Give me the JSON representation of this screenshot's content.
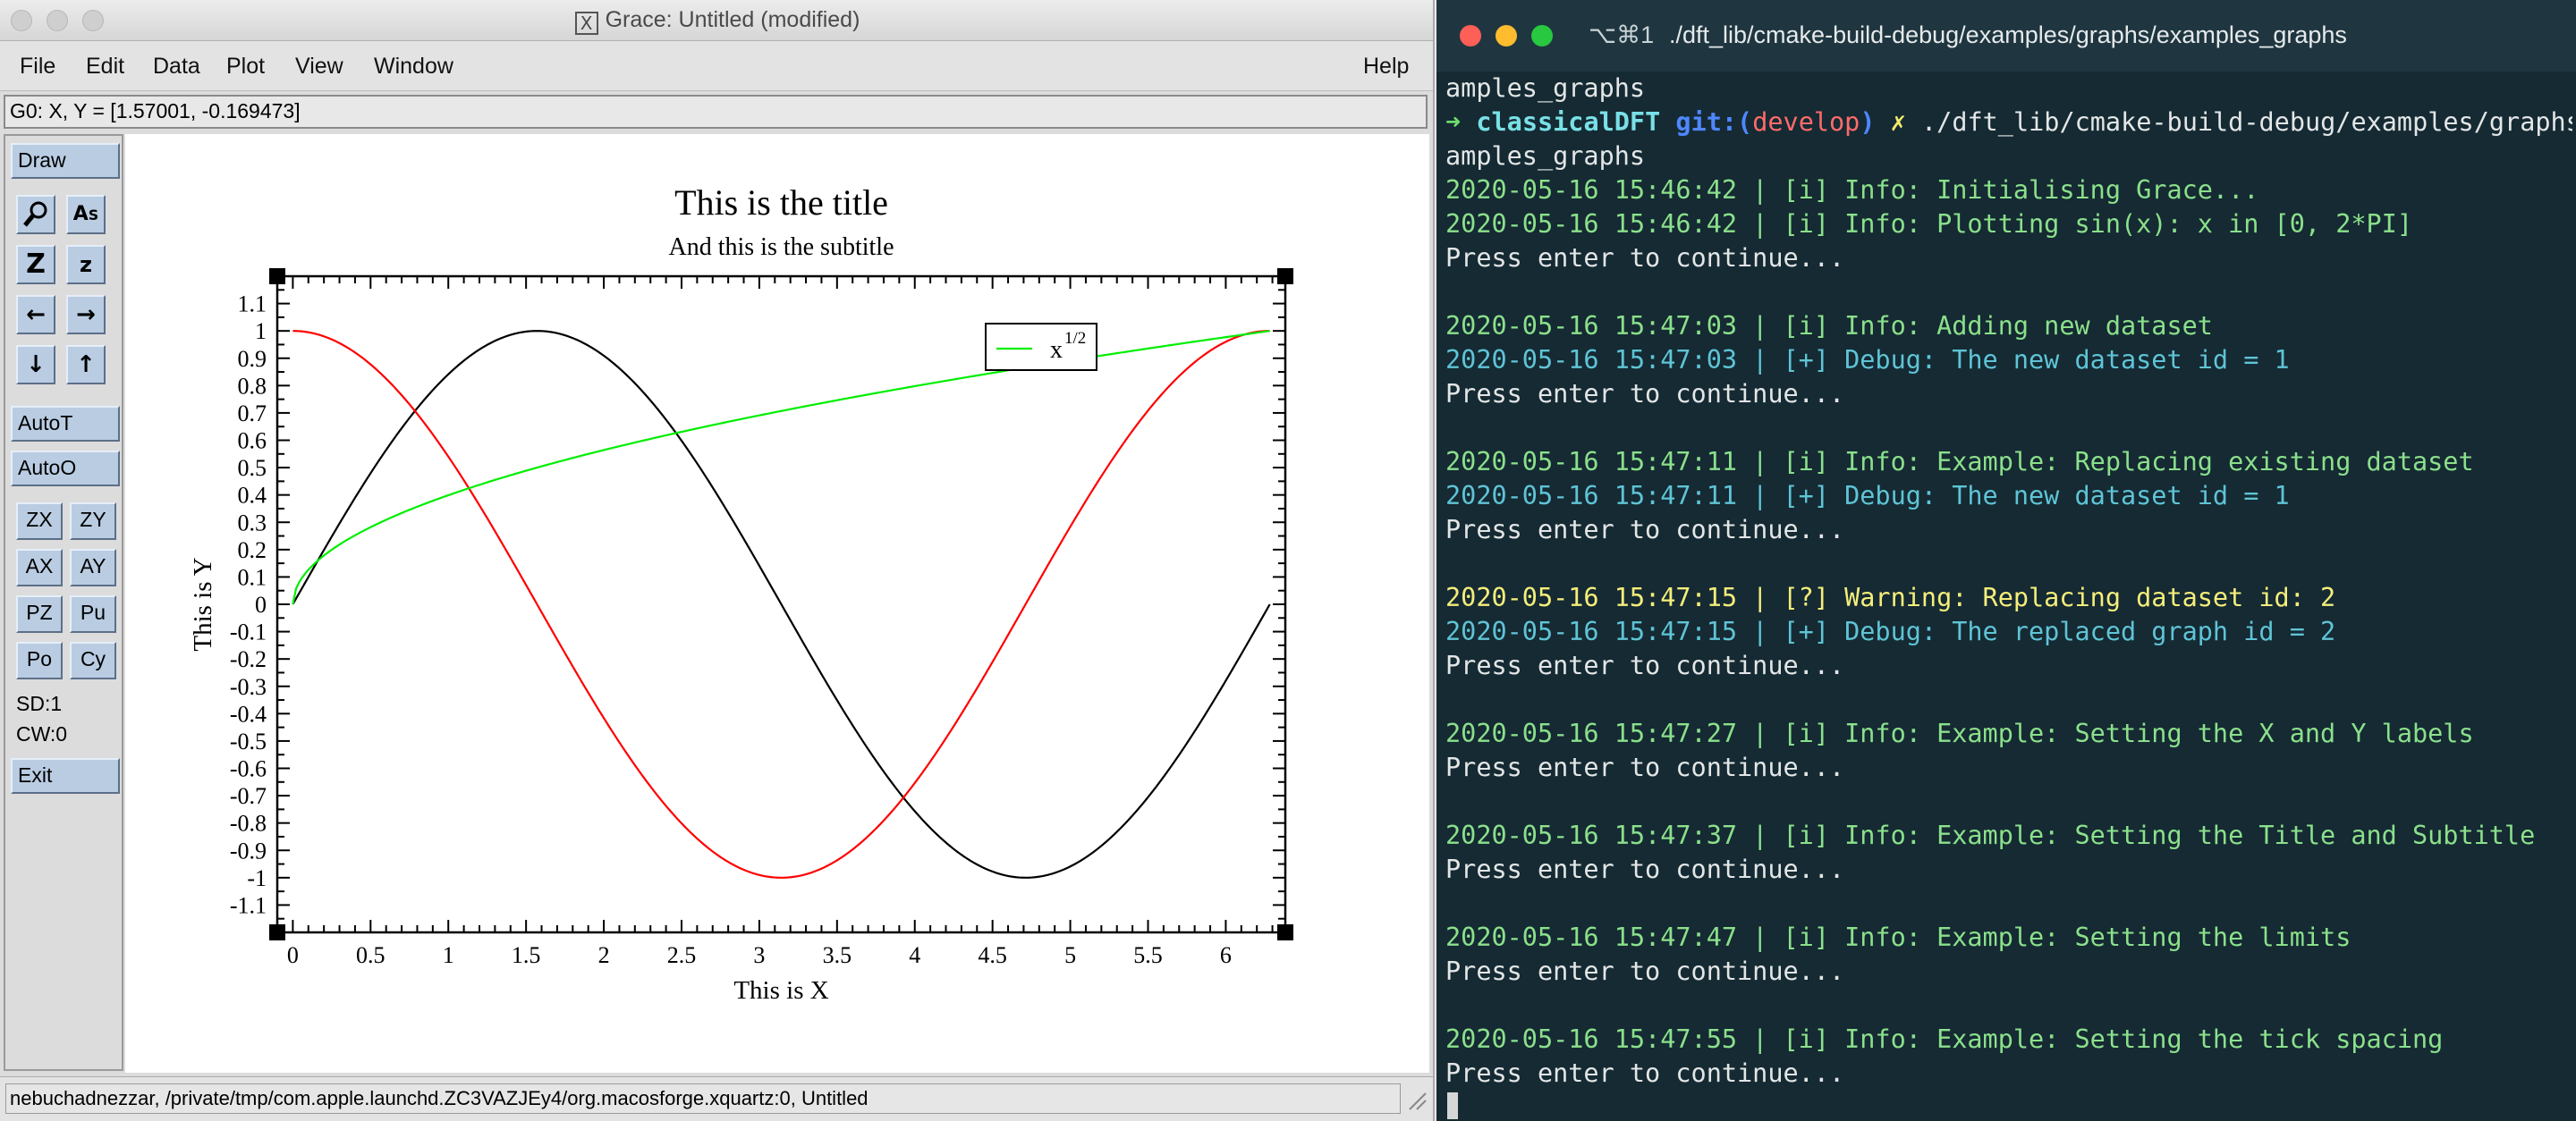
{
  "grace": {
    "title": "Grace: Untitled (modified)",
    "menu": {
      "file": "File",
      "edit": "Edit",
      "data": "Data",
      "plot": "Plot",
      "view": "View",
      "window": "Window",
      "help": "Help"
    },
    "locator": "G0: X, Y = [1.57001, -0.169473]",
    "toolbar": {
      "draw": "Draw",
      "autot": "AutoT",
      "autoo": "AutoO",
      "zx": "ZX",
      "zy": "ZY",
      "ax": "AX",
      "ay": "AY",
      "pz": "PZ",
      "pu": "Pu",
      "po": "Po",
      "cy": "Cy",
      "sd": "SD:1",
      "cw": "CW:0",
      "exit": "Exit",
      "icons": [
        "magnifier-icon",
        "text-tool-icon",
        "zoom-z-icon",
        "zoom-small-z-icon",
        "arrow-left-icon",
        "arrow-right-icon",
        "arrow-down-icon",
        "arrow-up-icon"
      ]
    },
    "status": "nebuchadnezzar, /private/tmp/com.apple.launchd.ZC3VAZJEy4/org.macosforge.xquartz:0, Untitled"
  },
  "chart_data": {
    "type": "line",
    "title": "This is the title",
    "subtitle": "And this is the subtitle",
    "xlabel": "This is X",
    "ylabel": "This is Y",
    "xlim": [
      -0.1,
      6.383
    ],
    "ylim": [
      -1.2,
      1.2
    ],
    "x_ticks": [
      "0",
      "0.5",
      "1",
      "1.5",
      "2",
      "2.5",
      "3",
      "3.5",
      "4",
      "4.5",
      "5",
      "5.5",
      "6"
    ],
    "y_ticks": [
      "1.1",
      "1",
      "0.9",
      "0.8",
      "0.7",
      "0.6",
      "0.5",
      "0.4",
      "0.3",
      "0.2",
      "0.1",
      "0",
      "-0.1",
      "-0.2",
      "-0.3",
      "-0.4",
      "-0.5",
      "-0.6",
      "-0.7",
      "-0.8",
      "-0.9",
      "-1",
      "-1.1"
    ],
    "legend": {
      "placement": "top-right",
      "label_base": "x",
      "label_sup": "1/2"
    },
    "series": [
      {
        "function": "sin(x)",
        "color": "#000000",
        "x": [
          0,
          0.5,
          1,
          1.5708,
          2,
          2.5,
          3,
          3.5,
          4,
          4.5,
          4.7124,
          5,
          5.5,
          6,
          6.2832
        ],
        "values": [
          0,
          0.479,
          0.841,
          1,
          0.909,
          0.598,
          0.141,
          -0.351,
          -0.757,
          -0.978,
          -1,
          -0.959,
          -0.706,
          -0.279,
          0
        ]
      },
      {
        "function": "cos(x)",
        "color": "#ff0000",
        "x": [
          0,
          0.5,
          1,
          1.5708,
          2,
          2.5,
          3,
          3.1416,
          3.5,
          4,
          4.5,
          5,
          5.5,
          6,
          6.2832
        ],
        "values": [
          1,
          0.878,
          0.54,
          0,
          -0.416,
          -0.801,
          -0.99,
          -1,
          -0.936,
          -0.654,
          -0.211,
          0.284,
          0.709,
          0.96,
          1
        ]
      },
      {
        "function": "x^(1/2) (scaled)",
        "name": "x1/2",
        "color": "#00ee00",
        "x": [
          0,
          0.25,
          0.5,
          1,
          1.5,
          2,
          2.5,
          3,
          3.5,
          4,
          4.5,
          5,
          5.5,
          6,
          6.2832
        ],
        "values": [
          0,
          0.199,
          0.282,
          0.399,
          0.489,
          0.564,
          0.631,
          0.691,
          0.746,
          0.798,
          0.846,
          0.892,
          0.936,
          0.977,
          1
        ]
      }
    ]
  },
  "terminal": {
    "shortcut": "⌥⌘1",
    "path": "./dft_lib/cmake-build-debug/examples/graphs/examples_graphs",
    "lines": [
      {
        "t": "amples_graphs",
        "c": "white"
      },
      {
        "prompt": true,
        "arrow": "➜",
        "dir": "classicalDFT",
        "git": "git:(",
        "branch": "develop",
        "gitclose": ")",
        "x": "✗",
        "cmd": "./dft_lib/cmake-build-debug/examples/graphs/ex"
      },
      {
        "t": "amples_graphs",
        "c": "white"
      },
      {
        "t": "2020-05-16 15:46:42 | [i] Info: Initialising Grace...",
        "c": "green"
      },
      {
        "t": "2020-05-16 15:46:42 | [i] Info: Plotting sin(x): x in [0, 2*PI]",
        "c": "green"
      },
      {
        "t": "Press enter to continue...",
        "c": "white"
      },
      {
        "t": "",
        "c": "white"
      },
      {
        "t": "2020-05-16 15:47:03 | [i] Info: Adding new dataset",
        "c": "green"
      },
      {
        "t": "2020-05-16 15:47:03 | [+] Debug: The new dataset id = 1",
        "c": "cyan"
      },
      {
        "t": "Press enter to continue...",
        "c": "white"
      },
      {
        "t": "",
        "c": "white"
      },
      {
        "t": "2020-05-16 15:47:11 | [i] Info: Example: Replacing existing dataset",
        "c": "green"
      },
      {
        "t": "2020-05-16 15:47:11 | [+] Debug: The new dataset id = 1",
        "c": "cyan"
      },
      {
        "t": "Press enter to continue...",
        "c": "white"
      },
      {
        "t": "",
        "c": "white"
      },
      {
        "t": "2020-05-16 15:47:15 | [?] Warning: Replacing dataset id: 2",
        "c": "yellow"
      },
      {
        "t": "2020-05-16 15:47:15 | [+] Debug: The replaced graph id = 2",
        "c": "cyan"
      },
      {
        "t": "Press enter to continue...",
        "c": "white"
      },
      {
        "t": "",
        "c": "white"
      },
      {
        "t": "2020-05-16 15:47:27 | [i] Info: Example: Setting the X and Y labels",
        "c": "green"
      },
      {
        "t": "Press enter to continue...",
        "c": "white"
      },
      {
        "t": "",
        "c": "white"
      },
      {
        "t": "2020-05-16 15:47:37 | [i] Info: Example: Setting the Title and Subtitle",
        "c": "green"
      },
      {
        "t": "Press enter to continue...",
        "c": "white"
      },
      {
        "t": "",
        "c": "white"
      },
      {
        "t": "2020-05-16 15:47:47 | [i] Info: Example: Setting the limits",
        "c": "green"
      },
      {
        "t": "Press enter to continue...",
        "c": "white"
      },
      {
        "t": "",
        "c": "white"
      },
      {
        "t": "2020-05-16 15:47:55 | [i] Info: Example: Setting the tick spacing",
        "c": "green"
      },
      {
        "t": "Press enter to continue...",
        "c": "white"
      }
    ]
  }
}
